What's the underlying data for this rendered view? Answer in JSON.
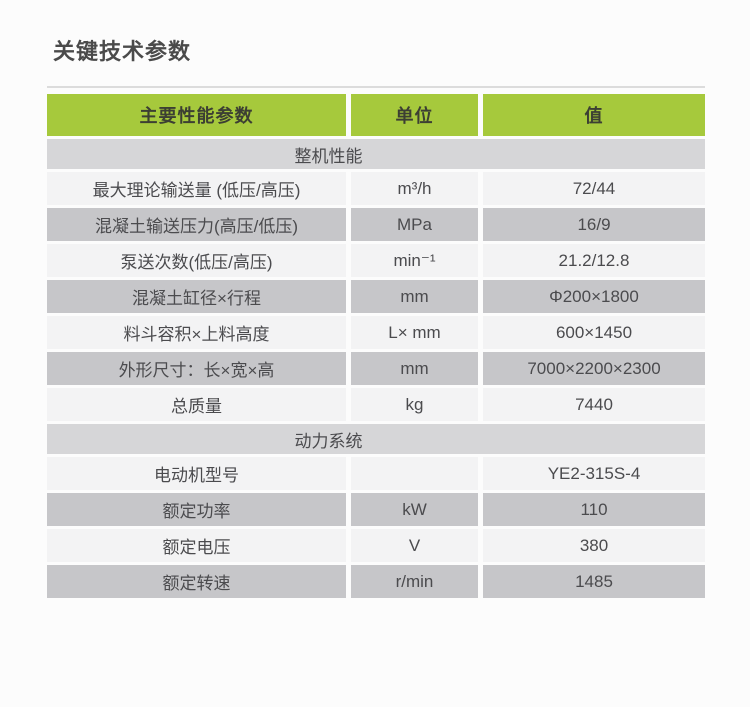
{
  "page_title": "关键技术参数",
  "colors": {
    "header_green": "#a6c93c",
    "header_text": "#3c3f33",
    "section_gray": "#d6d6d8",
    "row_light": "#f3f3f4",
    "row_dark": "#c6c6c9",
    "body_text": "#4b4b4e"
  },
  "table": {
    "headers": [
      "主要性能参数",
      "单位",
      "值"
    ],
    "sections": [
      {
        "title": "整机性能",
        "rows": [
          {
            "label": "最大理论输送量 (低压/高压)",
            "unit": "m³/h",
            "value": "72/44"
          },
          {
            "label": "混凝土输送压力(高压/低压)",
            "unit": "MPa",
            "value": "16/9"
          },
          {
            "label": "泵送次数(低压/高压)",
            "unit": "min⁻¹",
            "value": "21.2/12.8"
          },
          {
            "label": "混凝土缸径×行程",
            "unit": "mm",
            "value": "Φ200×1800"
          },
          {
            "label": "料斗容积×上料高度",
            "unit": "L× mm",
            "value": "600×1450"
          },
          {
            "label": "外形尺寸：长×宽×高",
            "unit": "mm",
            "value": "7000×2200×2300"
          },
          {
            "label": "总质量",
            "unit": "kg",
            "value": "7440"
          }
        ]
      },
      {
        "title": "动力系统",
        "rows": [
          {
            "label": "电动机型号",
            "unit": "",
            "value": "YE2-315S-4"
          },
          {
            "label": "额定功率",
            "unit": "kW",
            "value": "110"
          },
          {
            "label": "额定电压",
            "unit": "V",
            "value": "380"
          },
          {
            "label": "额定转速",
            "unit": "r/min",
            "value": "1485"
          }
        ]
      }
    ]
  }
}
